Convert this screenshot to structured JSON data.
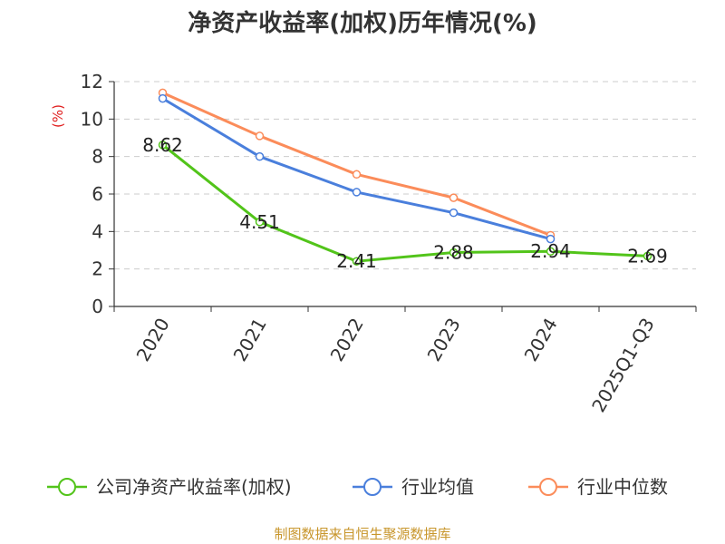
{
  "chart_data": {
    "type": "line",
    "title": "净资产收益率(加权)历年情况(%)",
    "ylabel": "(%)",
    "xlabel": "",
    "categories": [
      "2020",
      "2021",
      "2022",
      "2023",
      "2024",
      "2025Q1-Q3"
    ],
    "ylim": [
      0,
      12
    ],
    "yticks": [
      0,
      2,
      4,
      6,
      8,
      10,
      12
    ],
    "grid": true,
    "legend_position": "bottom",
    "series": [
      {
        "name": "公司净资产收益率(加权)",
        "color": "#52c41a",
        "values": [
          8.62,
          4.51,
          2.41,
          2.88,
          2.94,
          2.69
        ],
        "labels": [
          "8.62",
          "4.51",
          "2.41",
          "2.88",
          "2.94",
          "2.69"
        ]
      },
      {
        "name": "行业均值",
        "color": "#4a7fdc",
        "values": [
          11.1,
          8.0,
          6.1,
          5.0,
          3.6,
          null
        ]
      },
      {
        "name": "行业中位数",
        "color": "#fb8c5a",
        "values": [
          11.4,
          9.1,
          7.05,
          5.8,
          3.8,
          null
        ]
      }
    ],
    "source": "制图数据来自恒生聚源数据库",
    "ylabel_color": "#e02020",
    "source_color": "#c8962c"
  }
}
